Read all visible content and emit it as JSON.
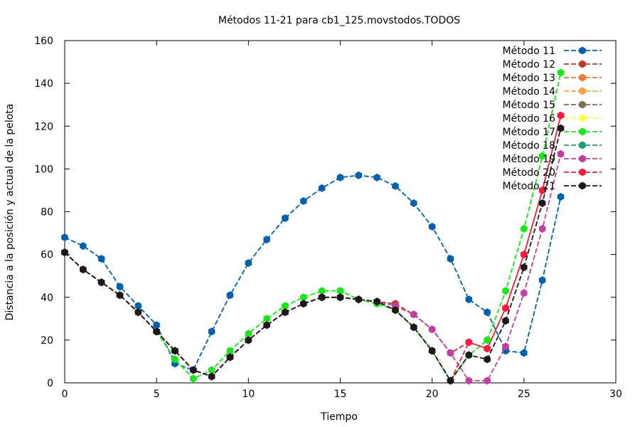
{
  "chart_data": {
    "type": "line",
    "title": "Métodos 11-21 para cb1_125.movstodos.TODOS",
    "xlabel": "Tiempo",
    "ylabel": "Distancia a la posición y actual de la pelota",
    "xlim": [
      0,
      30
    ],
    "ylim": [
      0,
      160
    ],
    "xticks": [
      0,
      5,
      10,
      15,
      20,
      25,
      30
    ],
    "yticks": [
      0,
      20,
      40,
      60,
      80,
      100,
      120,
      140,
      160
    ],
    "grid": false,
    "legend": "top-right",
    "series": [
      {
        "name": "Método 11",
        "color": "#0060ad",
        "x": [
          0,
          1,
          2,
          3,
          4,
          5,
          6,
          7,
          8,
          9,
          10,
          11,
          12,
          13,
          14,
          15,
          16,
          17,
          18,
          19,
          20,
          21,
          22,
          23,
          24,
          25,
          26,
          27
        ],
        "values": [
          68,
          64,
          58,
          45,
          36,
          27,
          9,
          6,
          24,
          41,
          56,
          67,
          77,
          85,
          91,
          96,
          97,
          96,
          92,
          84,
          73,
          58,
          39,
          33,
          15,
          14,
          48,
          87
        ]
      },
      {
        "name": "Método 12",
        "color": "#c0392b",
        "x": [
          0,
          1,
          2,
          3,
          4,
          5,
          6,
          7,
          8,
          9,
          10,
          11,
          12,
          13,
          14,
          15,
          16,
          17,
          18,
          19,
          20,
          21,
          22,
          23,
          24,
          25,
          26,
          27
        ],
        "values": [
          61,
          53,
          47,
          41,
          33,
          24,
          15,
          6,
          3,
          12,
          20,
          27,
          33,
          37,
          40,
          40,
          39,
          38,
          37,
          32,
          25,
          14,
          19,
          16,
          35,
          60,
          90,
          125
        ]
      },
      {
        "name": "Método 13",
        "color": "#f07838",
        "x": [],
        "values": []
      },
      {
        "name": "Método 14",
        "color": "#ffa040",
        "x": [],
        "values": []
      },
      {
        "name": "Método 15",
        "color": "#7b7050",
        "x": [],
        "values": []
      },
      {
        "name": "Método 16",
        "color": "#ffff50",
        "x": [],
        "values": []
      },
      {
        "name": "Método 17",
        "color": "#19e619",
        "x": [
          0,
          1,
          2,
          3,
          4,
          5,
          6,
          7,
          8,
          9,
          10,
          11,
          12,
          13,
          14,
          15,
          16,
          17,
          18,
          19,
          20,
          21,
          22,
          23,
          24,
          25,
          26,
          27
        ],
        "values": [
          61,
          53,
          47,
          41,
          33,
          24,
          11,
          2,
          6,
          15,
          23,
          30,
          36,
          40,
          43,
          43,
          39,
          37,
          34,
          26,
          15,
          1,
          13,
          20,
          43,
          72,
          106,
          145
        ]
      },
      {
        "name": "Método 18",
        "color": "#1a9e76",
        "x": [],
        "values": []
      },
      {
        "name": "Método 19",
        "color": "#c040a0",
        "x": [
          0,
          1,
          2,
          3,
          4,
          5,
          6,
          7,
          8,
          9,
          10,
          11,
          12,
          13,
          14,
          15,
          16,
          17,
          18,
          19,
          20,
          21,
          22,
          23,
          24,
          25,
          26,
          27
        ],
        "values": [
          61,
          53,
          47,
          41,
          33,
          24,
          15,
          6,
          3,
          12,
          20,
          27,
          33,
          37,
          40,
          40,
          39,
          38,
          36,
          32,
          25,
          14,
          1,
          1,
          17,
          42,
          72,
          107
        ]
      },
      {
        "name": "Método 20",
        "color": "#ff1a40",
        "x": [
          0,
          1,
          2,
          3,
          4,
          5,
          6,
          7,
          8,
          9,
          10,
          11,
          12,
          13,
          14,
          15,
          16,
          17,
          18,
          19,
          20,
          21,
          22,
          23,
          24,
          25,
          26,
          27
        ],
        "values": [
          61,
          53,
          47,
          41,
          33,
          24,
          15,
          6,
          3,
          12,
          20,
          27,
          33,
          37,
          40,
          40,
          39,
          38,
          34,
          26,
          15,
          1,
          19,
          16,
          35,
          60,
          90,
          125
        ]
      },
      {
        "name": "Método 21",
        "color": "#1a1a1a",
        "x": [
          0,
          1,
          2,
          3,
          4,
          5,
          6,
          7,
          8,
          9,
          10,
          11,
          12,
          13,
          14,
          15,
          16,
          17,
          18,
          19,
          20,
          21,
          22,
          23,
          24,
          25,
          26,
          27
        ],
        "values": [
          61,
          53,
          47,
          41,
          33,
          24,
          15,
          6,
          3,
          12,
          20,
          27,
          33,
          37,
          40,
          40,
          39,
          38,
          34,
          26,
          15,
          1,
          13,
          11,
          29,
          54,
          84,
          119
        ]
      }
    ]
  }
}
